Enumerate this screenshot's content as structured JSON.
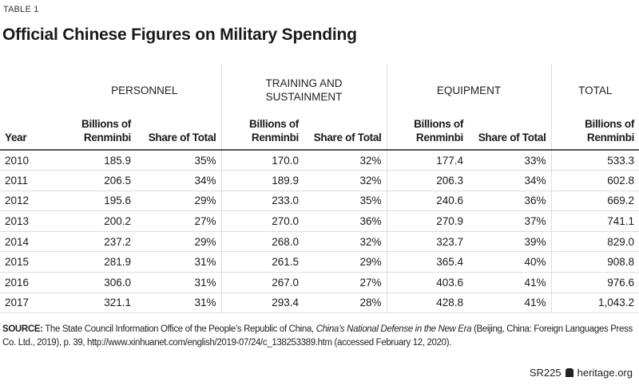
{
  "label": "TABLE 1",
  "title": "Official Chinese Figures on Military Spending",
  "groups": {
    "personnel": "PERSONNEL",
    "training": "TRAINING AND SUSTAINMENT",
    "equipment": "EQUIPMENT",
    "total": "TOTAL"
  },
  "columns": [
    "Year",
    "Billions of Renminbi",
    "Share of Total",
    "Billions of Renminbi",
    "Share of Total",
    "Billions of Renminbi",
    "Share of Total",
    "Billions of Renminbi"
  ],
  "rows": [
    [
      "2010",
      "185.9",
      "35%",
      "170.0",
      "32%",
      "177.4",
      "33%",
      "533.3"
    ],
    [
      "2011",
      "206.5",
      "34%",
      "189.9",
      "32%",
      "206.3",
      "34%",
      "602.8"
    ],
    [
      "2012",
      "195.6",
      "29%",
      "233.0",
      "35%",
      "240.6",
      "36%",
      "669.2"
    ],
    [
      "2013",
      "200.2",
      "27%",
      "270.0",
      "36%",
      "270.9",
      "37%",
      "741.1"
    ],
    [
      "2014",
      "237.2",
      "29%",
      "268.0",
      "32%",
      "323.7",
      "39%",
      "829.0"
    ],
    [
      "2015",
      "281.9",
      "31%",
      "261.5",
      "29%",
      "365.4",
      "40%",
      "908.8"
    ],
    [
      "2016",
      "306.0",
      "31%",
      "267.0",
      "27%",
      "403.6",
      "41%",
      "976.6"
    ],
    [
      "2017",
      "321.1",
      "31%",
      "293.4",
      "28%",
      "428.8",
      "41%",
      "1,043.2"
    ]
  ],
  "source": {
    "label": "SOURCE:",
    "text1": " The State Council Information Office of the People’s Republic of China, ",
    "italic": "China’s National Defense in the New Era",
    "text2": " (Beijing, China: Foreign Languages Press Co. Ltd., 2019), p. 39, http://www.xinhuanet.com/english/2019-07/24/c_138253389.htm (accessed February 12, 2020)."
  },
  "footer": {
    "code": "SR225",
    "icon": "heritage-bell-icon",
    "site": "heritage.org"
  }
}
